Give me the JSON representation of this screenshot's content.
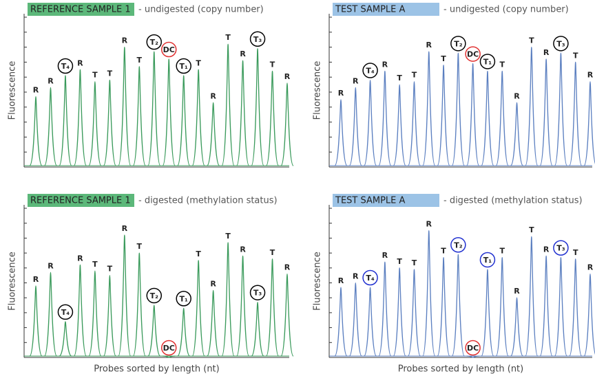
{
  "chart_data": [
    {
      "type": "peak",
      "title": "REFERENCE SAMPLE 1",
      "subtitle": "- undigested (copy number)",
      "title_color": "#5cb87a",
      "color": "#3a9a5b",
      "ylabel": "Fluorescence",
      "categories": [
        "R",
        "R",
        "T₄",
        "R",
        "T",
        "T",
        "R",
        "T",
        "T₂",
        "DC",
        "T₁",
        "T",
        "R",
        "T",
        "R",
        "T₃",
        "T",
        "R"
      ],
      "values": [
        47,
        53,
        61,
        65,
        57,
        58,
        80,
        67,
        77,
        72,
        61,
        65,
        43,
        82,
        71,
        79,
        64,
        56
      ],
      "label_circles": [
        null,
        null,
        "#000000",
        null,
        null,
        null,
        null,
        null,
        "#000000",
        "#e03030",
        "#000000",
        null,
        null,
        null,
        null,
        "#000000",
        null,
        null
      ],
      "ylim": [
        0,
        100
      ],
      "yticks": [
        0,
        10,
        20,
        30,
        40,
        50,
        60,
        70,
        80,
        90,
        100
      ]
    },
    {
      "type": "peak",
      "title": "TEST SAMPLE A",
      "subtitle": "- undigested (copy number)",
      "title_color": "#9cc3e6",
      "color": "#5b7fc0",
      "ylabel": "Fluorescence",
      "categories": [
        "R",
        "R",
        "T₄",
        "R",
        "T",
        "T",
        "R",
        "T",
        "T₂",
        "DC",
        "T₁",
        "T",
        "R",
        "T",
        "R",
        "T₃",
        "T",
        "R"
      ],
      "values": [
        45,
        53,
        58,
        64,
        55,
        57,
        77,
        68,
        76,
        69,
        64,
        64,
        43,
        80,
        72,
        76,
        70,
        57
      ],
      "label_circles": [
        null,
        null,
        "#000000",
        null,
        null,
        null,
        null,
        null,
        "#000000",
        "#e03030",
        "#000000",
        null,
        null,
        null,
        null,
        "#000000",
        null,
        null
      ],
      "ylim": [
        0,
        100
      ],
      "yticks": [
        0,
        10,
        20,
        30,
        40,
        50,
        60,
        70,
        80,
        90,
        100
      ]
    },
    {
      "type": "peak",
      "title": "REFERENCE SAMPLE 1",
      "subtitle": "- digested (methylation status)",
      "title_color": "#5cb87a",
      "color": "#3a9a5b",
      "ylabel": "Fluorescence",
      "xlabel": "Probes sorted by length (nt)",
      "categories": [
        "R",
        "R",
        "T₄",
        "R",
        "T",
        "T",
        "R",
        "T",
        "T₂",
        "DC",
        "T₁",
        "T",
        "R",
        "T",
        "R",
        "T₃",
        "T",
        "R"
      ],
      "values": [
        48,
        57,
        24,
        62,
        58,
        55,
        82,
        70,
        35,
        0,
        33,
        65,
        45,
        77,
        68,
        37,
        66,
        56
      ],
      "label_circles": [
        null,
        null,
        "#000000",
        null,
        null,
        null,
        null,
        null,
        "#000000",
        "#e03030",
        "#000000",
        null,
        null,
        null,
        null,
        "#000000",
        null,
        null
      ],
      "ylim": [
        0,
        100
      ],
      "yticks": [
        0,
        10,
        20,
        30,
        40,
        50,
        60,
        70,
        80,
        90,
        100
      ]
    },
    {
      "type": "peak",
      "title": "TEST SAMPLE A",
      "subtitle": "- digested (methylation status)",
      "title_color": "#9cc3e6",
      "color": "#5b7fc0",
      "ylabel": "Fluorescence",
      "xlabel": "Probes sorted by length (nt)",
      "categories": [
        "R",
        "R",
        "T₄",
        "R",
        "T",
        "T",
        "R",
        "T",
        "T₂",
        "DC",
        "T₁",
        "T",
        "R",
        "T",
        "R",
        "T₃",
        "T",
        "R"
      ],
      "values": [
        47,
        50,
        47,
        64,
        60,
        59,
        85,
        67,
        69,
        0,
        59,
        67,
        40,
        81,
        68,
        67,
        66,
        56
      ],
      "label_circles": [
        null,
        null,
        "#2030d0",
        null,
        null,
        null,
        null,
        null,
        "#2030d0",
        "#e03030",
        "#2030d0",
        null,
        null,
        null,
        null,
        "#2030d0",
        null,
        null
      ],
      "ylim": [
        0,
        100
      ],
      "yticks": [
        0,
        10,
        20,
        30,
        40,
        50,
        60,
        70,
        80,
        90,
        100
      ]
    }
  ]
}
